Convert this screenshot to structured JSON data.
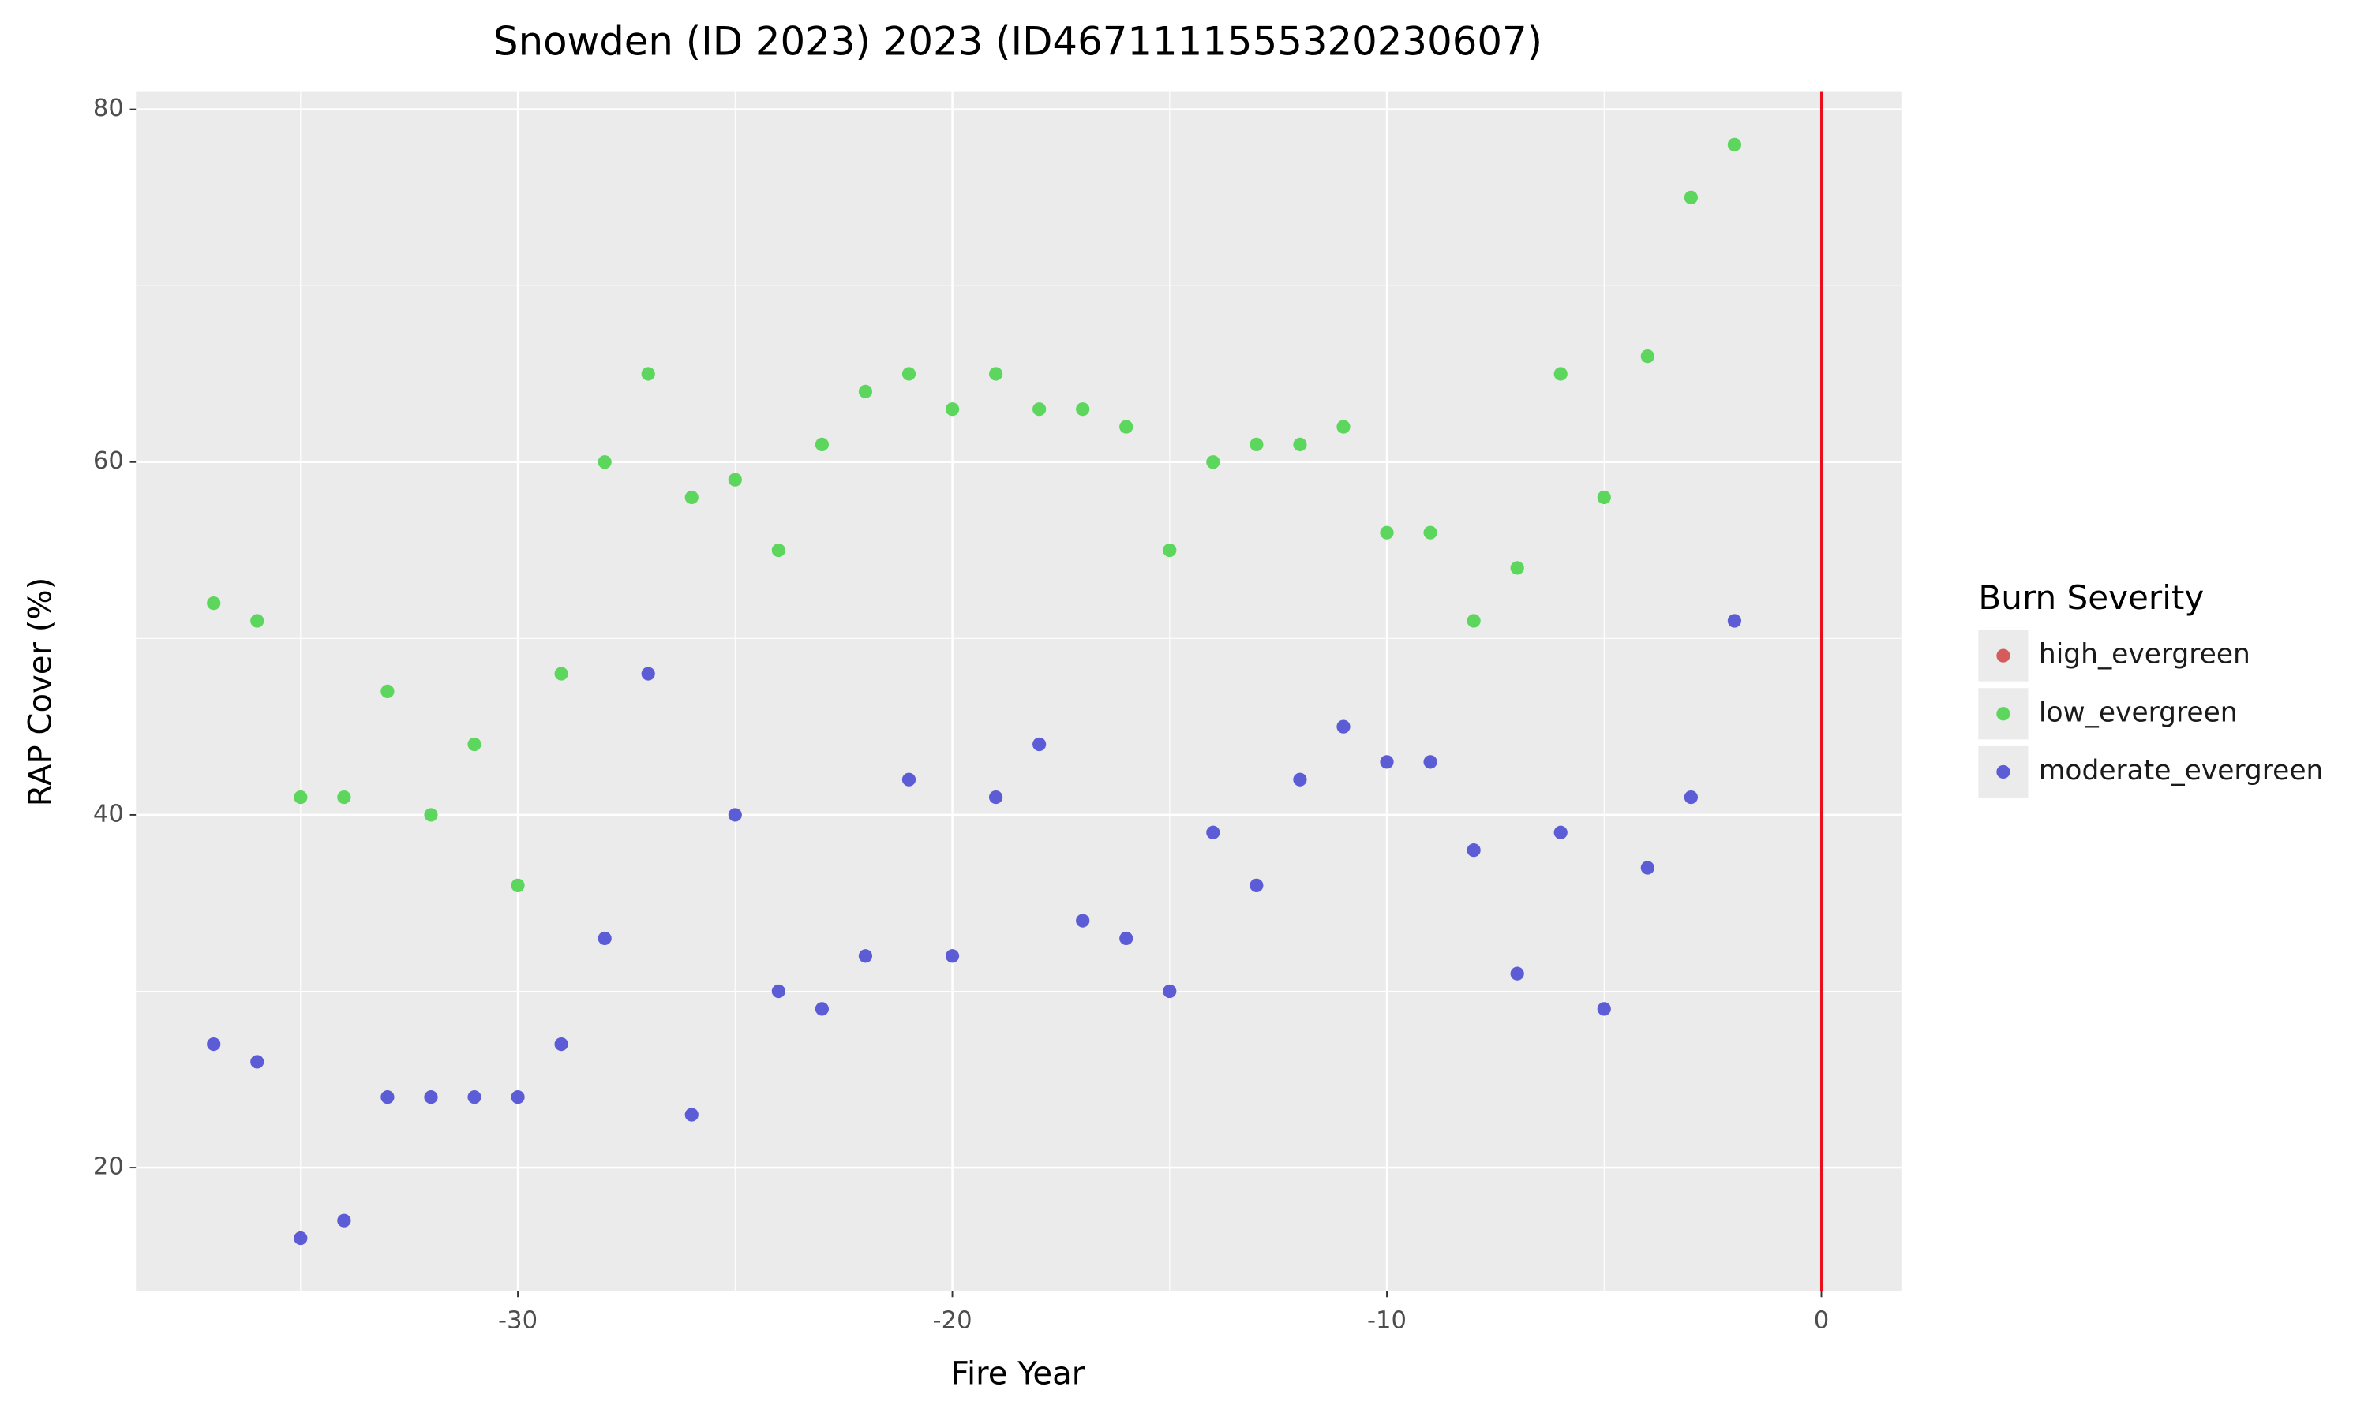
{
  "chart_data": {
    "type": "scatter",
    "title": "Snowden (ID 2023) 2023 (ID4671111555320230607)",
    "x_label": "Fire Year",
    "y_label": "RAP Cover (%)",
    "legend_title": "Burn Severity",
    "legend_position": "right",
    "grid": true,
    "xlim": [
      -38.79,
      1.84
    ],
    "xticks": [
      -30,
      -20,
      -10,
      0
    ],
    "ylim": [
      13.0,
      81.03
    ],
    "yticks": [
      20,
      40,
      60,
      80
    ],
    "vline": {
      "x": 0,
      "color": "#e8101c"
    },
    "series": [
      {
        "name": "high_evergreen",
        "color": "#d65c5c",
        "x": [],
        "values": []
      },
      {
        "name": "low_evergreen",
        "color": "#5cd65c",
        "x": [
          -37,
          -36,
          -35,
          -34,
          -33,
          -32,
          -31,
          -30,
          -29,
          -28,
          -27,
          -26,
          -25,
          -24,
          -23,
          -22,
          -21,
          -20,
          -19,
          -18,
          -17,
          -16,
          -15,
          -14,
          -13,
          -12,
          -11,
          -10,
          -9,
          -8,
          -7,
          -6,
          -5,
          -4,
          -3,
          -2
        ],
        "values": [
          52,
          51,
          41,
          41,
          47,
          40,
          44,
          36,
          48,
          60,
          65,
          58,
          59,
          55,
          61,
          64,
          65,
          63,
          65,
          63,
          63,
          62,
          55,
          60,
          61,
          61,
          62,
          56,
          56,
          51,
          54,
          65,
          58,
          66,
          75,
          78
        ]
      },
      {
        "name": "moderate_evergreen",
        "color": "#5c5cd6",
        "x": [
          -37,
          -36,
          -35,
          -34,
          -33,
          -32,
          -31,
          -30,
          -29,
          -28,
          -27,
          -26,
          -25,
          -24,
          -23,
          -22,
          -21,
          -20,
          -19,
          -18,
          -17,
          -16,
          -15,
          -14,
          -13,
          -12,
          -11,
          -10,
          -9,
          -8,
          -7,
          -6,
          -5,
          -4,
          -3,
          -2
        ],
        "values": [
          27,
          26,
          16,
          17,
          24,
          24,
          24,
          24,
          27,
          33,
          48,
          23,
          40,
          30,
          29,
          32,
          42,
          32,
          41,
          44,
          34,
          33,
          30,
          39,
          36,
          42,
          45,
          43,
          43,
          38,
          31,
          39,
          29,
          37,
          41,
          51
        ]
      }
    ]
  }
}
